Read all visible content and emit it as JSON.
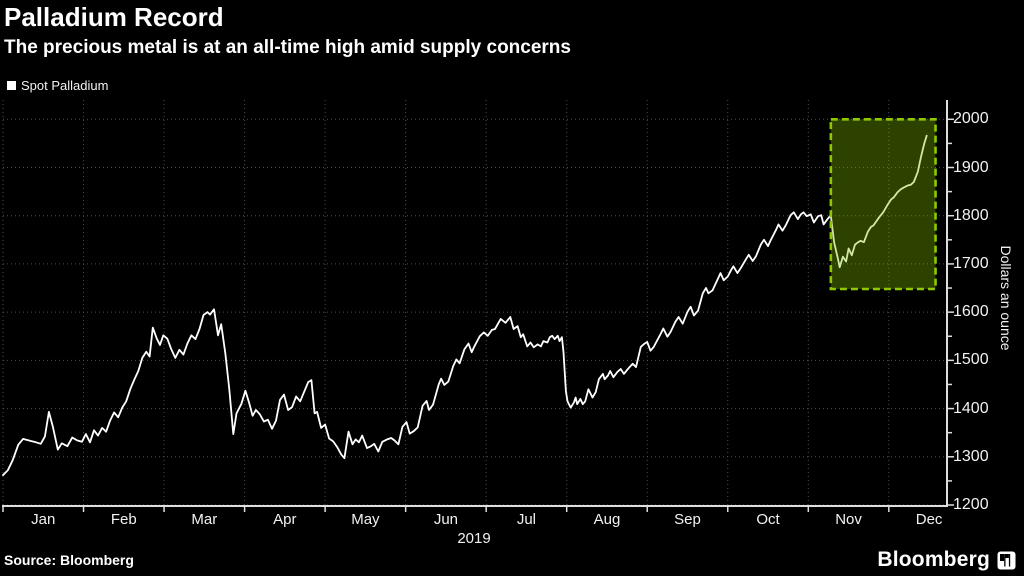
{
  "header": {
    "title": "Palladium Record",
    "subtitle": "The precious metal is at an all-time high amid supply concerns"
  },
  "legend": {
    "label": "Spot Palladium",
    "marker_color": "#ffffff"
  },
  "footer": {
    "source": "Source: Bloomberg",
    "brand": "Bloomberg",
    "brand_icon": "bar-chart-logo"
  },
  "chart_data": {
    "type": "line",
    "title": "Palladium Record",
    "series_name": "Spot Palladium",
    "xlabel": "",
    "ylabel": "Dollars an ounce",
    "x_unit": "months since Jan 1, 2019",
    "x_tick_labels": [
      "Jan",
      "Feb",
      "Mar",
      "Apr",
      "May",
      "Jun",
      "Jul",
      "Aug",
      "Sep",
      "Oct",
      "Nov",
      "Dec"
    ],
    "x_axis_year": "2019",
    "y_ticks": [
      1200,
      1300,
      1400,
      1500,
      1600,
      1700,
      1800,
      1900,
      2000
    ],
    "y_minor_step": 50,
    "xlim": [
      0,
      11.71
    ],
    "ylim": [
      1200,
      2040
    ],
    "grid": "dotted",
    "legend_position": "top-left",
    "colors": {
      "line": "#ffffff",
      "grid": "#4f4f4f",
      "axis": "#dedede",
      "background": "#000000",
      "highlight_fill": "rgba(132,189,0,0.35)",
      "highlight_border": "#8ec800"
    },
    "highlight_box": {
      "x0": 10.28,
      "x1": 11.58,
      "y0": 1648,
      "y1": 2000
    },
    "points": [
      [
        0,
        1262
      ],
      [
        0.06,
        1272
      ],
      [
        0.12,
        1293
      ],
      [
        0.19,
        1325
      ],
      [
        0.25,
        1337
      ],
      [
        0.34,
        1333
      ],
      [
        0.41,
        1330
      ],
      [
        0.47,
        1327
      ],
      [
        0.52,
        1342
      ],
      [
        0.57,
        1393
      ],
      [
        0.62,
        1362
      ],
      [
        0.68,
        1315
      ],
      [
        0.73,
        1328
      ],
      [
        0.8,
        1322
      ],
      [
        0.86,
        1340
      ],
      [
        0.92,
        1334
      ],
      [
        0.98,
        1331
      ],
      [
        1.03,
        1347
      ],
      [
        1.08,
        1330
      ],
      [
        1.13,
        1355
      ],
      [
        1.18,
        1344
      ],
      [
        1.23,
        1360
      ],
      [
        1.28,
        1352
      ],
      [
        1.33,
        1375
      ],
      [
        1.38,
        1392
      ],
      [
        1.43,
        1382
      ],
      [
        1.48,
        1402
      ],
      [
        1.53,
        1415
      ],
      [
        1.58,
        1440
      ],
      [
        1.63,
        1460
      ],
      [
        1.68,
        1478
      ],
      [
        1.73,
        1505
      ],
      [
        1.78,
        1518
      ],
      [
        1.82,
        1508
      ],
      [
        1.86,
        1568
      ],
      [
        1.91,
        1545
      ],
      [
        1.95,
        1532
      ],
      [
        1.99,
        1552
      ],
      [
        2.04,
        1545
      ],
      [
        2.09,
        1523
      ],
      [
        2.14,
        1505
      ],
      [
        2.19,
        1522
      ],
      [
        2.24,
        1512
      ],
      [
        2.29,
        1535
      ],
      [
        2.34,
        1552
      ],
      [
        2.39,
        1544
      ],
      [
        2.44,
        1565
      ],
      [
        2.49,
        1594
      ],
      [
        2.54,
        1600
      ],
      [
        2.57,
        1595
      ],
      [
        2.62,
        1606
      ],
      [
        2.67,
        1552
      ],
      [
        2.71,
        1575
      ],
      [
        2.76,
        1515
      ],
      [
        2.81,
        1440
      ],
      [
        2.86,
        1347
      ],
      [
        2.9,
        1390
      ],
      [
        2.96,
        1410
      ],
      [
        3.01,
        1437
      ],
      [
        3.06,
        1410
      ],
      [
        3.1,
        1385
      ],
      [
        3.14,
        1397
      ],
      [
        3.19,
        1388
      ],
      [
        3.24,
        1373
      ],
      [
        3.29,
        1377
      ],
      [
        3.34,
        1358
      ],
      [
        3.39,
        1375
      ],
      [
        3.44,
        1418
      ],
      [
        3.49,
        1429
      ],
      [
        3.54,
        1397
      ],
      [
        3.59,
        1403
      ],
      [
        3.64,
        1425
      ],
      [
        3.69,
        1415
      ],
      [
        3.74,
        1435
      ],
      [
        3.79,
        1455
      ],
      [
        3.83,
        1459
      ],
      [
        3.87,
        1390
      ],
      [
        3.9,
        1393
      ],
      [
        3.95,
        1360
      ],
      [
        4,
        1367
      ],
      [
        4.05,
        1338
      ],
      [
        4.1,
        1332
      ],
      [
        4.15,
        1320
      ],
      [
        4.2,
        1305
      ],
      [
        4.24,
        1297
      ],
      [
        4.29,
        1352
      ],
      [
        4.34,
        1326
      ],
      [
        4.38,
        1336
      ],
      [
        4.42,
        1330
      ],
      [
        4.46,
        1344
      ],
      [
        4.52,
        1318
      ],
      [
        4.57,
        1322
      ],
      [
        4.61,
        1327
      ],
      [
        4.66,
        1311
      ],
      [
        4.71,
        1331
      ],
      [
        4.77,
        1336
      ],
      [
        4.82,
        1339
      ],
      [
        4.86,
        1334
      ],
      [
        4.91,
        1326
      ],
      [
        4.96,
        1362
      ],
      [
        5.01,
        1372
      ],
      [
        5.05,
        1348
      ],
      [
        5.1,
        1353
      ],
      [
        5.15,
        1361
      ],
      [
        5.21,
        1406
      ],
      [
        5.26,
        1416
      ],
      [
        5.29,
        1397
      ],
      [
        5.34,
        1408
      ],
      [
        5.41,
        1450
      ],
      [
        5.44,
        1462
      ],
      [
        5.48,
        1449
      ],
      [
        5.53,
        1456
      ],
      [
        5.59,
        1488
      ],
      [
        5.63,
        1502
      ],
      [
        5.67,
        1494
      ],
      [
        5.73,
        1523
      ],
      [
        5.78,
        1535
      ],
      [
        5.82,
        1517
      ],
      [
        5.85,
        1528
      ],
      [
        5.92,
        1550
      ],
      [
        5.97,
        1558
      ],
      [
        6.02,
        1551
      ],
      [
        6.07,
        1563
      ],
      [
        6.11,
        1565
      ],
      [
        6.18,
        1586
      ],
      [
        6.24,
        1578
      ],
      [
        6.3,
        1590
      ],
      [
        6.34,
        1565
      ],
      [
        6.39,
        1571
      ],
      [
        6.43,
        1548
      ],
      [
        6.46,
        1554
      ],
      [
        6.51,
        1529
      ],
      [
        6.55,
        1537
      ],
      [
        6.59,
        1527
      ],
      [
        6.64,
        1533
      ],
      [
        6.68,
        1529
      ],
      [
        6.71,
        1540
      ],
      [
        6.76,
        1537
      ],
      [
        6.79,
        1548
      ],
      [
        6.82,
        1551
      ],
      [
        6.85,
        1544
      ],
      [
        6.89,
        1551
      ],
      [
        6.91,
        1540
      ],
      [
        6.94,
        1548
      ],
      [
        6.96,
        1517
      ],
      [
        6.99,
        1436
      ],
      [
        7.01,
        1415
      ],
      [
        7.05,
        1402
      ],
      [
        7.09,
        1413
      ],
      [
        7.11,
        1423
      ],
      [
        7.13,
        1409
      ],
      [
        7.17,
        1420
      ],
      [
        7.2,
        1409
      ],
      [
        7.23,
        1415
      ],
      [
        7.27,
        1440
      ],
      [
        7.32,
        1423
      ],
      [
        7.36,
        1434
      ],
      [
        7.4,
        1461
      ],
      [
        7.45,
        1472
      ],
      [
        7.47,
        1461
      ],
      [
        7.51,
        1468
      ],
      [
        7.54,
        1478
      ],
      [
        7.58,
        1465
      ],
      [
        7.63,
        1476
      ],
      [
        7.67,
        1482
      ],
      [
        7.71,
        1472
      ],
      [
        7.76,
        1482
      ],
      [
        7.82,
        1493
      ],
      [
        7.86,
        1486
      ],
      [
        7.92,
        1528
      ],
      [
        7.96,
        1534
      ],
      [
        8,
        1538
      ],
      [
        8.04,
        1520
      ],
      [
        8.08,
        1528
      ],
      [
        8.17,
        1556
      ],
      [
        8.2,
        1566
      ],
      [
        8.25,
        1549
      ],
      [
        8.29,
        1559
      ],
      [
        8.35,
        1580
      ],
      [
        8.39,
        1590
      ],
      [
        8.44,
        1576
      ],
      [
        8.5,
        1601
      ],
      [
        8.54,
        1611
      ],
      [
        8.58,
        1593
      ],
      [
        8.63,
        1603
      ],
      [
        8.69,
        1639
      ],
      [
        8.73,
        1650
      ],
      [
        8.76,
        1639
      ],
      [
        8.81,
        1645
      ],
      [
        8.88,
        1670
      ],
      [
        8.91,
        1681
      ],
      [
        8.95,
        1666
      ],
      [
        9,
        1674
      ],
      [
        9.04,
        1687
      ],
      [
        9.07,
        1695
      ],
      [
        9.12,
        1681
      ],
      [
        9.16,
        1691
      ],
      [
        9.22,
        1708
      ],
      [
        9.26,
        1719
      ],
      [
        9.31,
        1706
      ],
      [
        9.35,
        1716
      ],
      [
        9.41,
        1740
      ],
      [
        9.45,
        1750
      ],
      [
        9.5,
        1737
      ],
      [
        9.53,
        1748
      ],
      [
        9.6,
        1771
      ],
      [
        9.63,
        1782
      ],
      [
        9.68,
        1769
      ],
      [
        9.72,
        1780
      ],
      [
        9.78,
        1801
      ],
      [
        9.82,
        1807
      ],
      [
        9.87,
        1793
      ],
      [
        9.91,
        1803
      ],
      [
        9.94,
        1807
      ],
      [
        9.98,
        1799
      ],
      [
        10.03,
        1803
      ],
      [
        10.07,
        1786
      ],
      [
        10.12,
        1799
      ],
      [
        10.16,
        1801
      ],
      [
        10.19,
        1782
      ],
      [
        10.24,
        1793
      ],
      [
        10.28,
        1801
      ],
      [
        10.32,
        1745
      ],
      [
        10.37,
        1709
      ],
      [
        10.39,
        1693
      ],
      [
        10.43,
        1715
      ],
      [
        10.47,
        1705
      ],
      [
        10.5,
        1732
      ],
      [
        10.54,
        1718
      ],
      [
        10.58,
        1740
      ],
      [
        10.62,
        1745
      ],
      [
        10.65,
        1748
      ],
      [
        10.69,
        1745
      ],
      [
        10.74,
        1767
      ],
      [
        10.78,
        1777
      ],
      [
        10.81,
        1780
      ],
      [
        10.88,
        1797
      ],
      [
        10.93,
        1807
      ],
      [
        10.99,
        1824
      ],
      [
        11.03,
        1834
      ],
      [
        11.06,
        1838
      ],
      [
        11.11,
        1849
      ],
      [
        11.15,
        1855
      ],
      [
        11.19,
        1859
      ],
      [
        11.24,
        1863
      ],
      [
        11.27,
        1864
      ],
      [
        11.31,
        1870
      ],
      [
        11.36,
        1891
      ],
      [
        11.4,
        1922
      ],
      [
        11.44,
        1950
      ],
      [
        11.47,
        1966
      ]
    ]
  }
}
